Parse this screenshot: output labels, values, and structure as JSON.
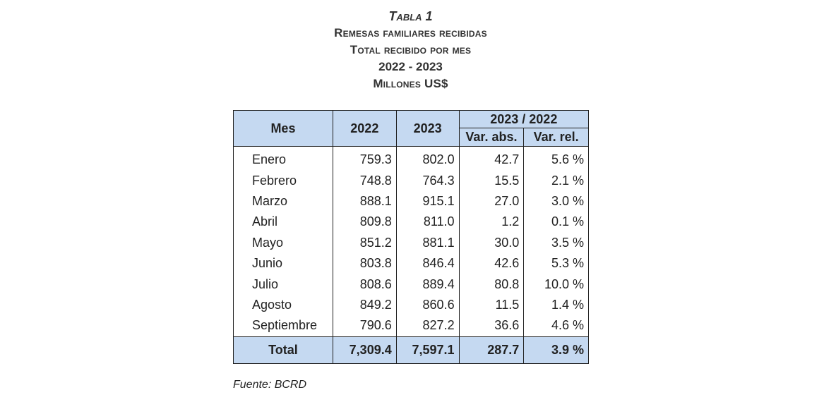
{
  "title": {
    "tabla": "Tabla 1",
    "line1": "Remesas familiares recibidas",
    "line2": "Total recibido por mes",
    "line3": "2022 - 2023",
    "line4": "Millones US$"
  },
  "table": {
    "headers": {
      "mes": "Mes",
      "y2022": "2022",
      "y2023": "2023",
      "group": "2023 / 2022",
      "var_abs": "Var. abs.",
      "var_rel": "Var. rel."
    },
    "rows": [
      {
        "mes": "Enero",
        "y2022": "759.3",
        "y2023": "802.0",
        "abs": "42.7",
        "rel": "5.6 %"
      },
      {
        "mes": "Febrero",
        "y2022": "748.8",
        "y2023": "764.3",
        "abs": "15.5",
        "rel": "2.1 %"
      },
      {
        "mes": "Marzo",
        "y2022": "888.1",
        "y2023": "915.1",
        "abs": "27.0",
        "rel": "3.0 %"
      },
      {
        "mes": "Abril",
        "y2022": "809.8",
        "y2023": "811.0",
        "abs": "1.2",
        "rel": "0.1 %"
      },
      {
        "mes": "Mayo",
        "y2022": "851.2",
        "y2023": "881.1",
        "abs": "30.0",
        "rel": "3.5 %"
      },
      {
        "mes": "Junio",
        "y2022": "803.8",
        "y2023": "846.4",
        "abs": "42.6",
        "rel": "5.3 %"
      },
      {
        "mes": "Julio",
        "y2022": "808.6",
        "y2023": "889.4",
        "abs": "80.8",
        "rel": "10.0 %"
      },
      {
        "mes": "Agosto",
        "y2022": "849.2",
        "y2023": "860.6",
        "abs": "11.5",
        "rel": "1.4 %"
      },
      {
        "mes": "Septiembre",
        "y2022": "790.6",
        "y2023": "827.2",
        "abs": "36.6",
        "rel": "4.6 %"
      }
    ],
    "total": {
      "mes": "Total",
      "y2022": "7,309.4",
      "y2023": "7,597.1",
      "abs": "287.7",
      "rel": "3.9 %"
    }
  },
  "footer": {
    "source": "Fuente: BCRD"
  },
  "colors": {
    "header_fill": "#c5d9f1",
    "border": "#1f1f1f",
    "title_text": "#333333"
  }
}
